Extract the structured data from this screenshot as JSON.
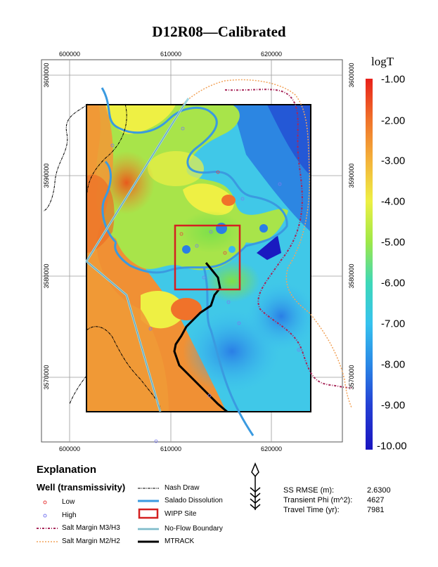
{
  "title": "D12R08—Calibrated",
  "map": {
    "x_ticks": [
      "600000",
      "610000",
      "620000"
    ],
    "y_ticks": [
      "3600000",
      "3590000",
      "3580000",
      "3570000"
    ]
  },
  "colorbar": {
    "title": "logT",
    "labels": [
      "-1.00",
      "-2.00",
      "-3.00",
      "-4.00",
      "-5.00",
      "-6.00",
      "-7.00",
      "-8.00",
      "-9.00",
      "-10.00"
    ],
    "colors": [
      "#e8201a",
      "#f0722a",
      "#f4b23a",
      "#eef044",
      "#9ee848",
      "#3ed8b8",
      "#36c2ee",
      "#2a88e6",
      "#2440d4",
      "#1a14c0"
    ]
  },
  "explanation": {
    "title": "Explanation",
    "well_title": "Well (transmissivity)",
    "low": "Low",
    "high": "High",
    "salt_m3h3": "Salt Margin M3/H3",
    "salt_m2h2": "Salt Margin M2/H2",
    "nash_draw": "Nash Draw",
    "salado": "Salado Dissolution",
    "wipp": "WIPP Site",
    "noflow": "No-Flow Boundary",
    "mtrack": "MTRACK"
  },
  "stats": {
    "rmse_label": "SS RMSE (m):",
    "rmse_value": "2.6300",
    "phi_label": "Transient Phi (m^2):",
    "phi_value": "4627",
    "travel_label": "Travel Time (yr):",
    "travel_value": "7981"
  },
  "colors": {
    "salt_m3h3": "#a8285a",
    "salt_m2h2": "#f2a35a",
    "salado": "#3a9ae0",
    "noflow": "#9fd6e0",
    "wipp": "#d42020",
    "mtrack": "#000000",
    "nash": "#000000"
  },
  "icons": {
    "north_arrow": "north-arrow-icon"
  }
}
